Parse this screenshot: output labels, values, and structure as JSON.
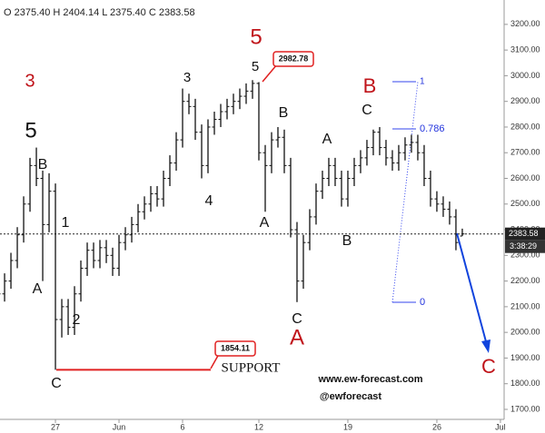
{
  "chart_data": {
    "type": "ohlc",
    "header": "O 2375.40 H 2404.14 L 2375.40 C 2383.58",
    "color": "#111111",
    "x": [
      22.5,
      23,
      23.5,
      24,
      24.5,
      25,
      25.5,
      26,
      26.5,
      27,
      27.5,
      28,
      28.5,
      29,
      29.5,
      30,
      30.5,
      31,
      31.5,
      32,
      32.5,
      33,
      33.5,
      34,
      34.5,
      35,
      35.5,
      36,
      36.5,
      37,
      37.5,
      38,
      38.5,
      39,
      39.5,
      40,
      40.5,
      41,
      41.5,
      42,
      42.5,
      43,
      43.5,
      44,
      44.5,
      45,
      45.5,
      46,
      46.5,
      47,
      47.5,
      48,
      48.5,
      49,
      49.5,
      50,
      50.5,
      51,
      51.5,
      52,
      52.5,
      53,
      53.5,
      54,
      54.5,
      55,
      55.5,
      56,
      56.5,
      57,
      57.5,
      58,
      58.5,
      59
    ],
    "open": [
      2100,
      2150,
      2200,
      2280,
      2380,
      2500,
      2650,
      2600,
      2420,
      2550,
      2050,
      2100,
      2020,
      2150,
      2250,
      2320,
      2280,
      2330,
      2300,
      2250,
      2350,
      2380,
      2420,
      2470,
      2500,
      2540,
      2520,
      2600,
      2660,
      2750,
      2900,
      2880,
      2780,
      2650,
      2800,
      2830,
      2860,
      2880,
      2900,
      2920,
      2940,
      2970,
      2700,
      2650,
      2750,
      2760,
      2650,
      2400,
      2200,
      2350,
      2450,
      2550,
      2600,
      2650,
      2600,
      2520,
      2600,
      2650,
      2680,
      2720,
      2780,
      2720,
      2680,
      2660,
      2700,
      2730,
      2740,
      2700,
      2600,
      2520,
      2500,
      2480,
      2450,
      2375.4
    ],
    "high": [
      2180,
      2230,
      2310,
      2410,
      2530,
      2680,
      2720,
      2630,
      2620,
      2580,
      2130,
      2130,
      2180,
      2280,
      2350,
      2350,
      2360,
      2360,
      2330,
      2380,
      2410,
      2450,
      2500,
      2530,
      2570,
      2570,
      2630,
      2690,
      2780,
      2950,
      2930,
      2910,
      2810,
      2830,
      2860,
      2890,
      2910,
      2930,
      2950,
      2970,
      2982.78,
      2975,
      2730,
      2780,
      2800,
      2790,
      2680,
      2430,
      2380,
      2480,
      2580,
      2630,
      2680,
      2680,
      2630,
      2630,
      2680,
      2710,
      2750,
      2790,
      2800,
      2750,
      2710,
      2730,
      2760,
      2770,
      2770,
      2730,
      2630,
      2550,
      2530,
      2510,
      2480,
      2404.14
    ],
    "low": [
      2070,
      2120,
      2170,
      2250,
      2350,
      2470,
      2570,
      2200,
      2390,
      1854.11,
      1980,
      1990,
      1990,
      2120,
      2220,
      2250,
      2250,
      2270,
      2220,
      2220,
      2320,
      2350,
      2390,
      2440,
      2470,
      2490,
      2490,
      2570,
      2630,
      2720,
      2850,
      2750,
      2600,
      2620,
      2770,
      2800,
      2830,
      2850,
      2870,
      2890,
      2910,
      2670,
      2470,
      2620,
      2720,
      2620,
      2370,
      2118,
      2170,
      2320,
      2420,
      2520,
      2570,
      2570,
      2490,
      2490,
      2570,
      2620,
      2650,
      2690,
      2690,
      2650,
      2630,
      2630,
      2670,
      2700,
      2670,
      2570,
      2490,
      2470,
      2450,
      2420,
      2320,
      2375.4
    ],
    "close": [
      2150,
      2200,
      2280,
      2380,
      2500,
      2650,
      2600,
      2420,
      2550,
      2050,
      2100,
      2020,
      2150,
      2250,
      2320,
      2280,
      2330,
      2300,
      2250,
      2350,
      2380,
      2420,
      2470,
      2500,
      2540,
      2520,
      2600,
      2660,
      2750,
      2900,
      2880,
      2780,
      2650,
      2800,
      2830,
      2860,
      2880,
      2900,
      2920,
      2940,
      2970,
      2700,
      2650,
      2750,
      2760,
      2650,
      2400,
      2200,
      2350,
      2450,
      2550,
      2600,
      2650,
      2600,
      2520,
      2600,
      2650,
      2680,
      2720,
      2780,
      2720,
      2680,
      2660,
      2700,
      2730,
      2740,
      2700,
      2600,
      2520,
      2500,
      2480,
      2450,
      2350,
      2383.58
    ],
    "xlim": [
      22.64,
      62.29
    ],
    "xticks": [
      27,
      {
        "value": 32,
        "label": "Jun"
      },
      {
        "value": 37,
        "label": "6"
      },
      {
        "value": 43,
        "label": "12"
      },
      {
        "value": 50,
        "label": "19"
      },
      {
        "value": 57,
        "label": "26"
      },
      {
        "value": 62,
        "label": "Jul"
      }
    ],
    "ylim": [
      1661,
      3295
    ],
    "yticks": [
      {
        "value": 1700,
        "label": "1700.00"
      },
      {
        "value": 1800,
        "label": "1800.00"
      },
      {
        "value": 1900,
        "label": "1900.00"
      },
      {
        "value": 2000,
        "label": "2000.00"
      },
      {
        "value": 2100,
        "label": "2100.00"
      },
      {
        "value": 2200,
        "label": "2200.00"
      },
      {
        "value": 2300,
        "label": "2300.00"
      },
      {
        "value": 2400,
        "label": "2400.00"
      },
      {
        "value": 2500,
        "label": "2500.00"
      },
      {
        "value": 2600,
        "label": "2600.00"
      },
      {
        "value": 2700,
        "label": "2700.00"
      },
      {
        "value": 2800,
        "label": "2800.00"
      },
      {
        "value": 2900,
        "label": "2900.00"
      },
      {
        "value": 3000,
        "label": "3000.00"
      },
      {
        "value": 3100,
        "label": "3100.00"
      },
      {
        "value": 3200,
        "label": "3200.00"
      }
    ],
    "countdown": "3:38:29",
    "annotations": [
      "3",
      "5",
      "B",
      "1",
      "A",
      "2",
      "C",
      "3",
      "4",
      "5",
      "5",
      "B",
      "A",
      "A",
      "C",
      "A",
      "B",
      "B",
      "C",
      "C",
      "SUPPORT",
      "www.ew-forecast.com",
      "@ewforecast",
      "1",
      "0.786",
      "0",
      "2982.78",
      "1854.11"
    ]
  }
}
